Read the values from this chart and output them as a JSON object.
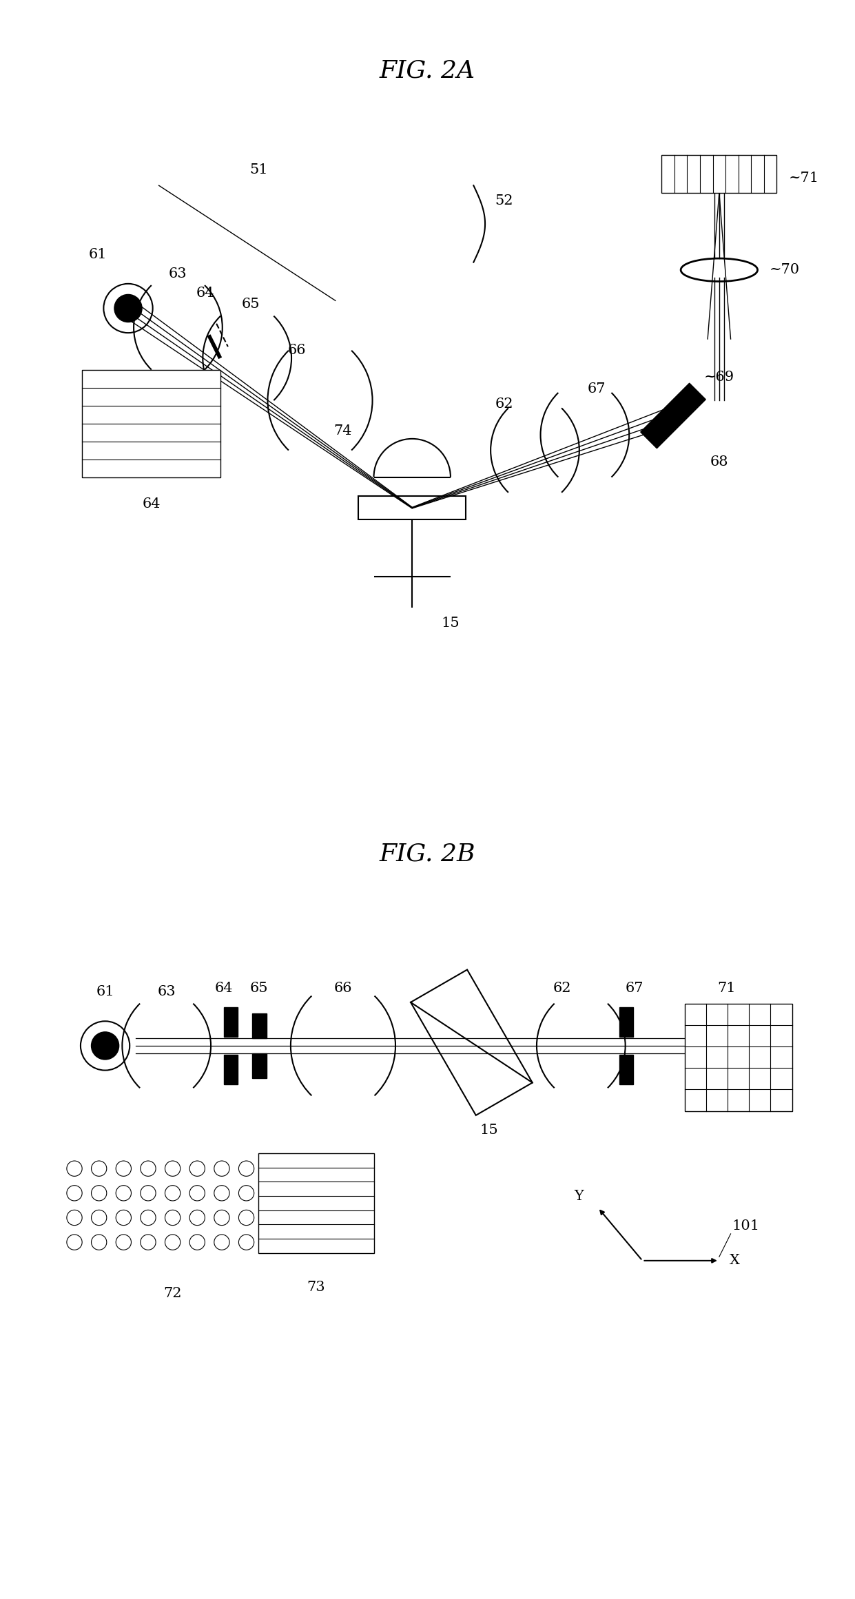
{
  "fig_title_A": "FIG. 2A",
  "fig_title_B": "FIG. 2B",
  "bg_color": "#ffffff",
  "line_color": "#000000",
  "fontsize_title": 26,
  "fontsize_label": 15
}
